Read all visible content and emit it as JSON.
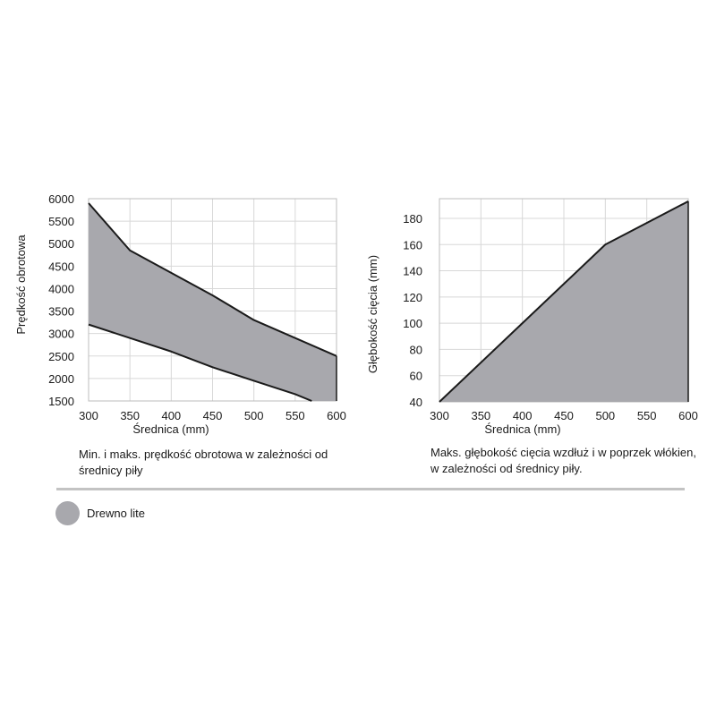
{
  "colors": {
    "fill": "#a8a8ad",
    "line": "#1a1a1a",
    "grid": "#d8d8d8",
    "legend": "#a8a8ad"
  },
  "chart_data": [
    {
      "type": "area",
      "xlabel": "Średnica (mm)",
      "ylabel": "Prędkość obrotowa",
      "x_ticks": [
        "300",
        "350",
        "400",
        "450",
        "500",
        "550",
        "600"
      ],
      "y_ticks": [
        "1500",
        "2000",
        "2500",
        "3000",
        "3500",
        "4000",
        "4500",
        "5000",
        "5500",
        "6000"
      ],
      "xlim": [
        300,
        600
      ],
      "ylim": [
        1500,
        6000
      ],
      "grid": true,
      "series": [
        {
          "x": [
            300,
            350,
            400,
            450,
            500,
            550,
            600
          ],
          "values": [
            5900,
            4850,
            4350,
            3850,
            3300,
            2900,
            2500
          ]
        },
        {
          "x": [
            300,
            350,
            400,
            450,
            500,
            550,
            570
          ],
          "values": [
            3200,
            2900,
            2600,
            2250,
            1950,
            1650,
            1500
          ]
        }
      ],
      "caption": "Min. i maks. prędkość obrotowa w zależności od średnicy piły"
    },
    {
      "type": "area",
      "xlabel": "Średnica (mm)",
      "ylabel": "Głębokość cięcia (mm)",
      "x_ticks": [
        "300",
        "350",
        "400",
        "450",
        "500",
        "550",
        "600"
      ],
      "y_ticks": [
        "40",
        "60",
        "80",
        "100",
        "120",
        "140",
        "160",
        "180"
      ],
      "xlim": [
        300,
        600
      ],
      "ylim": [
        40,
        195
      ],
      "grid": true,
      "series": [
        {
          "x": [
            300,
            400,
            500,
            600
          ],
          "values": [
            40,
            100,
            160,
            193
          ]
        }
      ],
      "caption": "Maks. głębokość cięcia wzdłuż i w poprzek włókien, w zależności od średnicy piły."
    }
  ],
  "legend": {
    "label": "Drewno lite"
  }
}
